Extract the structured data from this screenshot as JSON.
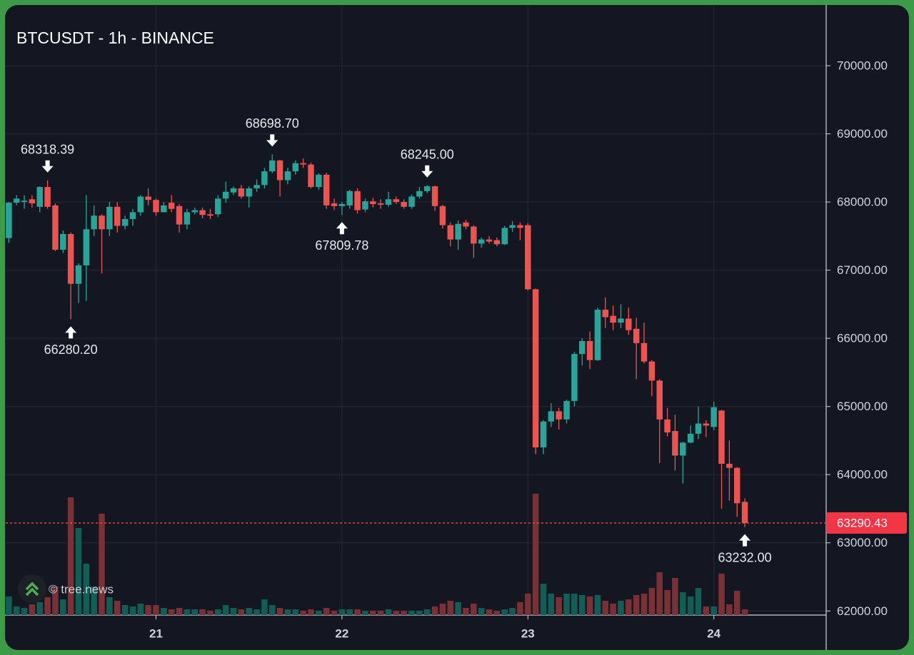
{
  "chart_data": {
    "type": "candlestick",
    "title": "BTCUSDT - 1h - BINANCE",
    "watermark": "© tree.news",
    "up_color": "#26a69a",
    "down_color": "#ef5350",
    "volume_up_color": "#115e57",
    "volume_down_color": "#7a3034",
    "grid": true,
    "xlim": [
      -0.4,
      105.5
    ],
    "xticks": [
      {
        "value": 19,
        "label": "21"
      },
      {
        "value": 43,
        "label": "22"
      },
      {
        "value": 67,
        "label": "23"
      },
      {
        "value": 91,
        "label": "24"
      }
    ],
    "ylim": [
      61940,
      70880
    ],
    "yticks": [
      {
        "value": 62000,
        "label": "62000.00"
      },
      {
        "value": 63000,
        "label": "63000.00"
      },
      {
        "value": 64000,
        "label": "64000.00"
      },
      {
        "value": 65000,
        "label": "65000.00"
      },
      {
        "value": 66000,
        "label": "66000.00"
      },
      {
        "value": 67000,
        "label": "67000.00"
      },
      {
        "value": 68000,
        "label": "68000.00"
      },
      {
        "value": 69000,
        "label": "69000.00"
      },
      {
        "value": 70000,
        "label": "70000.00"
      }
    ],
    "volume_lim": [
      0,
      200
    ],
    "open": [
      67470,
      67990,
      68000,
      68040,
      67930,
      68220,
      67950,
      67300,
      67530,
      66800,
      67070,
      67600,
      67800,
      67600,
      67930,
      67650,
      67750,
      67850,
      68080,
      68030,
      67850,
      67990,
      67940,
      67670,
      67850,
      67880,
      67820,
      67820,
      68050,
      68140,
      68200,
      68080,
      68200,
      68250,
      68450,
      68610,
      68320,
      68450,
      68570,
      68550,
      68220,
      68400,
      67980,
      67940,
      67950,
      68160,
      67890,
      68010,
      67980,
      67960,
      68040,
      68000,
      67930,
      68080,
      68160,
      68230,
      67940,
      67660,
      67450,
      67700,
      67640,
      67390,
      67450,
      67440,
      67380,
      67620,
      67660,
      67660,
      66720,
      64400,
      64780,
      64930,
      64810,
      65080,
      65770,
      65960,
      65680,
      66420,
      66330,
      66230,
      66290,
      66140,
      65930,
      65660,
      65380,
      64810,
      64640,
      64280,
      64470,
      64600,
      64750,
      64700,
      64940,
      64160,
      64100,
      63600
    ],
    "high": [
      68000,
      68100,
      68100,
      68100,
      68230,
      68318.39,
      67980,
      67580,
      67550,
      67100,
      68100,
      67950,
      67820,
      68000,
      68000,
      67800,
      67900,
      68100,
      68200,
      68050,
      68000,
      68100,
      67970,
      67900,
      67920,
      67920,
      67900,
      68100,
      68300,
      68230,
      68250,
      68230,
      68330,
      68500,
      68698.7,
      68620,
      68500,
      68610,
      68640,
      68580,
      68420,
      68430,
      68050,
      68000,
      68180,
      68200,
      68050,
      68060,
      68040,
      68150,
      68080,
      68040,
      68110,
      68220,
      68245,
      68240,
      67960,
      67700,
      67730,
      67740,
      67660,
      67480,
      67500,
      67480,
      67650,
      67720,
      67700,
      67690,
      66730,
      64800,
      65050,
      64980,
      65100,
      65800,
      66000,
      66100,
      66450,
      66600,
      66480,
      66500,
      66450,
      66300,
      66230,
      65680,
      65400,
      64980,
      64880,
      64480,
      64720,
      65000,
      64800,
      65070,
      64950,
      64500,
      64110,
      63650
    ],
    "low": [
      67400,
      67950,
      67900,
      67920,
      67850,
      67900,
      67280,
      67250,
      66280.2,
      66520,
      66550,
      67500,
      66950,
      67500,
      67550,
      67600,
      67650,
      67800,
      67950,
      67800,
      67850,
      67850,
      67550,
      67600,
      67820,
      67760,
      67750,
      67780,
      67990,
      68100,
      68050,
      67920,
      68150,
      68200,
      68420,
      68080,
      68260,
      68400,
      68500,
      68200,
      68180,
      67900,
      67880,
      67809.78,
      67900,
      67830,
      67850,
      67920,
      67900,
      67930,
      67970,
      67900,
      67900,
      68050,
      68130,
      67870,
      67610,
      67350,
      67300,
      67600,
      67180,
      67330,
      67390,
      67350,
      67370,
      67560,
      67440,
      66700,
      64300,
      64300,
      64700,
      64660,
      64750,
      65000,
      65600,
      65550,
      65670,
      66150,
      66120,
      66150,
      66050,
      65400,
      65630,
      65150,
      64170,
      64560,
      64060,
      63870,
      64460,
      64520,
      64550,
      64650,
      63500,
      63620,
      63380,
      63232
    ],
    "close": [
      67990,
      68050,
      68020,
      67980,
      68220,
      67930,
      67300,
      67530,
      66800,
      67070,
      67600,
      67800,
      67600,
      67930,
      67650,
      67750,
      67850,
      68080,
      68030,
      67850,
      67950,
      67900,
      67670,
      67850,
      67880,
      67810,
      67800,
      68050,
      68150,
      68200,
      68080,
      68200,
      68250,
      68450,
      68610,
      68320,
      68450,
      68570,
      68550,
      68220,
      68400,
      67950,
      67940,
      67970,
      68160,
      67880,
      68010,
      67970,
      67960,
      68040,
      68000,
      67930,
      68080,
      68160,
      68230,
      67940,
      67660,
      67450,
      67680,
      67640,
      67390,
      67450,
      67420,
      67380,
      67620,
      67660,
      67620,
      66720,
      64400,
      64780,
      64930,
      64810,
      65080,
      65770,
      65960,
      65680,
      66420,
      66310,
      66230,
      66290,
      66120,
      65930,
      65660,
      65380,
      64810,
      64620,
      64280,
      64470,
      64600,
      64750,
      64720,
      64990,
      64160,
      64100,
      63580,
      63290.43
    ],
    "volume": [
      26,
      12,
      10,
      15,
      18,
      25,
      40,
      22,
      165,
      122,
      72,
      40,
      142,
      25,
      20,
      14,
      12,
      16,
      14,
      14,
      10,
      8,
      10,
      8,
      8,
      8,
      6,
      8,
      14,
      10,
      8,
      10,
      8,
      22,
      14,
      10,
      8,
      8,
      6,
      8,
      6,
      10,
      6,
      8,
      8,
      8,
      6,
      6,
      6,
      8,
      6,
      6,
      6,
      6,
      8,
      12,
      16,
      20,
      18,
      10,
      16,
      10,
      8,
      6,
      8,
      10,
      18,
      30,
      170,
      44,
      30,
      25,
      30,
      30,
      28,
      26,
      28,
      20,
      16,
      20,
      22,
      28,
      30,
      38,
      60,
      35,
      52,
      32,
      26,
      38,
      12,
      12,
      58,
      15,
      34,
      8
    ],
    "annotations": [
      {
        "index": 5,
        "side": "above",
        "value": 68318.39,
        "label": "68318.39"
      },
      {
        "index": 8,
        "side": "below",
        "value": 66280.2,
        "label": "66280.20"
      },
      {
        "index": 34,
        "side": "above",
        "value": 68698.7,
        "label": "68698.70"
      },
      {
        "index": 43,
        "side": "below",
        "value": 67809.78,
        "label": "67809.78"
      },
      {
        "index": 54,
        "side": "above",
        "value": 68245,
        "label": "68245.00"
      },
      {
        "index": 95,
        "side": "below",
        "value": 63232,
        "label": "63232.00"
      }
    ],
    "last_price": 63290.43
  }
}
